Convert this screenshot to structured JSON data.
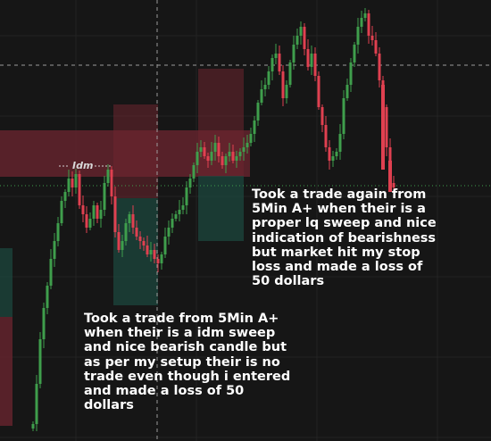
{
  "idm_label": "Idm",
  "annotations": {
    "note_top": "Took a trade again from\n5Min A+ when their is a\nproper lq sweep and nice\nindication of bearishness\nbut market hit my stop\nloss and made a loss of\n50 dollars",
    "note_bottom": "Took a trade from 5Min A+\nwhen their is a idm sweep\nand nice bearish candle but\nas per my setup their is no\ntrade even though i entered\nand made a loss of 50\ndollars"
  },
  "colors": {
    "background": "#161616",
    "bull": "#3f9e4c",
    "bear": "#e04050",
    "supply_zone": "#7a2a32",
    "demand_zone": "#1f4a40",
    "grid": "#2a2a2a"
  }
}
